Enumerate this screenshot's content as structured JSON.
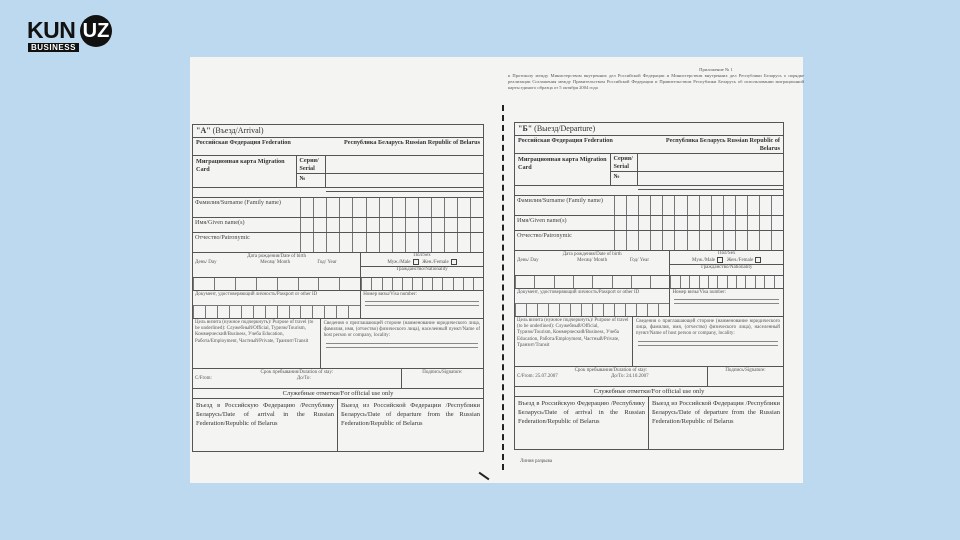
{
  "brand": {
    "name": "KUN",
    "tld": "UZ",
    "sub": "BUSINESS"
  },
  "appendix": {
    "title": "Приложение № 1",
    "text": "к Протоколу между Министерством внутренних дел Российской Федерации и Министерством внутренних дел Республики Беларусь о порядке реализации Соглашения между Правительством Российской Федерации и Правительством Республики Беларусь об использовании миграционной карты единого образца от 5 октября 2004 года"
  },
  "cards": [
    {
      "header_letter": "\"А\"",
      "header_text": "(Въезд/Arrival)",
      "fed_left": "Российская Федерация Federation",
      "fed_right": "Республика Беларусь Russian Republic of Belarus",
      "mig_card": "Миграционная карта Migration Card",
      "serial": "Серия/ Serial",
      "number": "№",
      "surname": "Фамилия/Surname (Family name)",
      "given": "Имя/Given name(s)",
      "patronymic": "Отчество/Patronymic",
      "dob": "Дата рождения/Date of birth",
      "day": "День/ Day",
      "month": "Месяц/ Month",
      "year": "Год/ Year",
      "sex": "Пол/Sex",
      "male": "Муж./Male",
      "female": "Жен./Female",
      "nationality": "Гражданство/Nationality",
      "document": "Документ, удостоверяющий личность/Passport or other ID",
      "visa": "Номер визы/Visa number:",
      "purpose": "Цель визита (нужное подчеркнуть)/ Purpose of travel (to be underlined): Служебный/Official, Туризм/Tourism, Коммерческий/Business, Учеба Education, Работа/Employment, Частный/Private, Транзит/Transit",
      "host": "Сведения о приглашающей стороне (наименование юридического лица, фамилия, имя, (отчество) физического лица), населенный пункт/Name of host person or company, locality:",
      "duration": "Срок пребывания/Duration of stay:",
      "from": "С/From:",
      "to": "До/To:",
      "signature": "Подпись/Signature:",
      "official": "Служебные отметки/For official use only",
      "arrival": "Въезд в Российскую Федерацию /Республику Беларусь/Date of arrival in the Russian Federation/Republic of Belarus",
      "departure": "Выезд из Российской Федерации /Республики Беларусь/Date of departure from the Russian Federation/Republic of Belarus"
    },
    {
      "header_letter": "\"Б\"",
      "header_text": "(Выезд/Departure)",
      "fed_left": "Российская Федерация Federation",
      "fed_right": "Республика Беларусь Russian Republic of Belarus",
      "mig_card": "Миграционная карта Migration Card",
      "serial": "Серия/ Serial",
      "number": "№",
      "surname": "Фамилия/Surname (Family name)",
      "given": "Имя/Given name(s)",
      "patronymic": "Отчество/Patronymic",
      "dob": "Дата рождения/Date of birth",
      "day": "День/ Day",
      "month": "Месяц/ Month",
      "year": "Год/ Year",
      "sex": "Пол/Sex",
      "male": "Муж./Male",
      "female": "Жен./Female",
      "nationality": "Гражданство/Nationality",
      "document": "Документ, удостоверяющий личность/Passport or other ID",
      "visa": "Номер визы/Visa number:",
      "purpose": "Цель визита (нужное подчеркнуть)/ Purpose of travel (to be underlined): Служебный/Official, Туризм/Tourism, Коммерческий/Business, Учеба Education, Работа/Employment, Частный/Private, Транзит/Transit",
      "host": "Сведения о приглашающей стороне (наименование юридического лица, фамилия, имя, (отчество) физического лица), населенный пункт/Name of host person or company, locality:",
      "duration": "Срок пребывания/Duration of stay:",
      "from": "С/From: 25.07.2007",
      "to": "До/To: 24.10.2007",
      "signature": "Подпись/Signature:",
      "official": "Служебные отметки/For official use only",
      "arrival": "Въезд в Российскую Федерацию /Республику Беларусь/Date of arrival in the Russian Federation/Republic of Belarus",
      "departure": "Выезд из Российской Федерации /Республики Беларусь/Date of departure from the Russian Federation/Republic of Belarus"
    }
  ],
  "tear_line": "Линия разрыва"
}
